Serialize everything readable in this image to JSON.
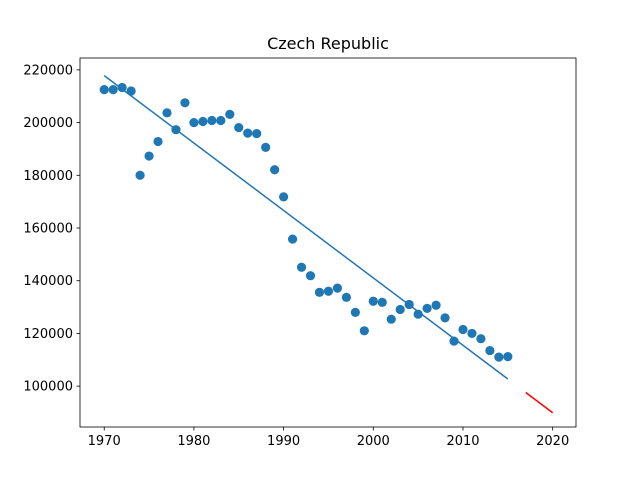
{
  "chart_data": {
    "type": "scatter",
    "title": "Czech Republic",
    "xlabel": "",
    "ylabel": "",
    "xlim": [
      1967.3,
      2022.6
    ],
    "ylim": [
      84500,
      224500
    ],
    "grid": false,
    "x_ticks": [
      1970,
      1980,
      1990,
      2000,
      2010,
      2020
    ],
    "y_ticks": [
      100000,
      120000,
      140000,
      160000,
      180000,
      200000,
      220000
    ],
    "x_tick_labels": [
      "1970",
      "1980",
      "1990",
      "2000",
      "2010",
      "2020"
    ],
    "y_tick_labels": [
      "100000",
      "120000",
      "140000",
      "160000",
      "180000",
      "200000",
      "220000"
    ],
    "series": [
      {
        "kind": "scatter",
        "color": "#1f77b4",
        "x": [
          1970,
          1971,
          1972,
          1973,
          1974,
          1975,
          1976,
          1977,
          1978,
          1979,
          1980,
          1981,
          1982,
          1983,
          1984,
          1985,
          1986,
          1987,
          1988,
          1989,
          1990,
          1991,
          1992,
          1993,
          1994,
          1995,
          1996,
          1997,
          1998,
          1999,
          2000,
          2001,
          2002,
          2003,
          2004,
          2005,
          2006,
          2007,
          2008,
          2009,
          2010,
          2011,
          2012,
          2013,
          2014,
          2015
        ],
        "y": [
          212500,
          212500,
          213300,
          212000,
          180000,
          187300,
          192800,
          203700,
          197300,
          207500,
          200000,
          200400,
          200800,
          200800,
          203100,
          198100,
          196000,
          195800,
          190600,
          182100,
          171800,
          155800,
          145100,
          141900,
          135600,
          136000,
          137200,
          133700,
          128000,
          121000,
          132200,
          131800,
          125400,
          129100,
          131000,
          127300,
          129500,
          130700,
          125900,
          117100,
          121500,
          120000,
          118000,
          113500,
          111000,
          111200
        ]
      },
      {
        "kind": "line",
        "color": "#1f77b4",
        "x": [
          1970,
          2015
        ],
        "y": [
          217800,
          102700
        ]
      },
      {
        "kind": "line",
        "color": "#ff0000",
        "x": [
          2017,
          2020
        ],
        "y": [
          97600,
          89900
        ]
      }
    ]
  }
}
